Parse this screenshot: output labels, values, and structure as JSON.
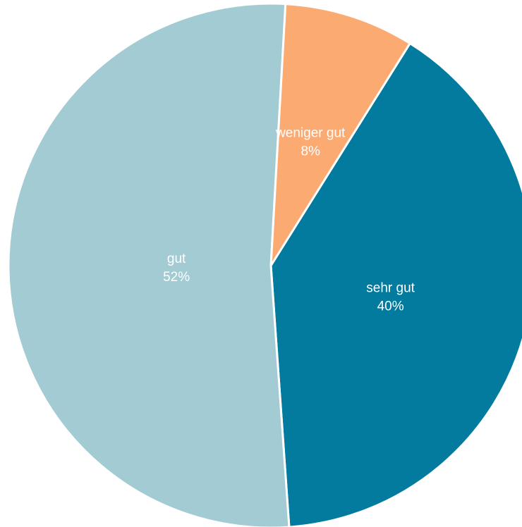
{
  "chart_data": {
    "type": "pie",
    "title": "",
    "slices": [
      {
        "label": "sehr gut",
        "value": 40,
        "value_label": "40%",
        "color": "#027b9e"
      },
      {
        "label": "gut",
        "value": 52,
        "value_label": "52%",
        "color": "#a3cbd3"
      },
      {
        "label": "weniger gut",
        "value": 8,
        "value_label": "8%",
        "color": "#fbaa72"
      }
    ],
    "label_color": "#ffffff",
    "legend": "none"
  }
}
